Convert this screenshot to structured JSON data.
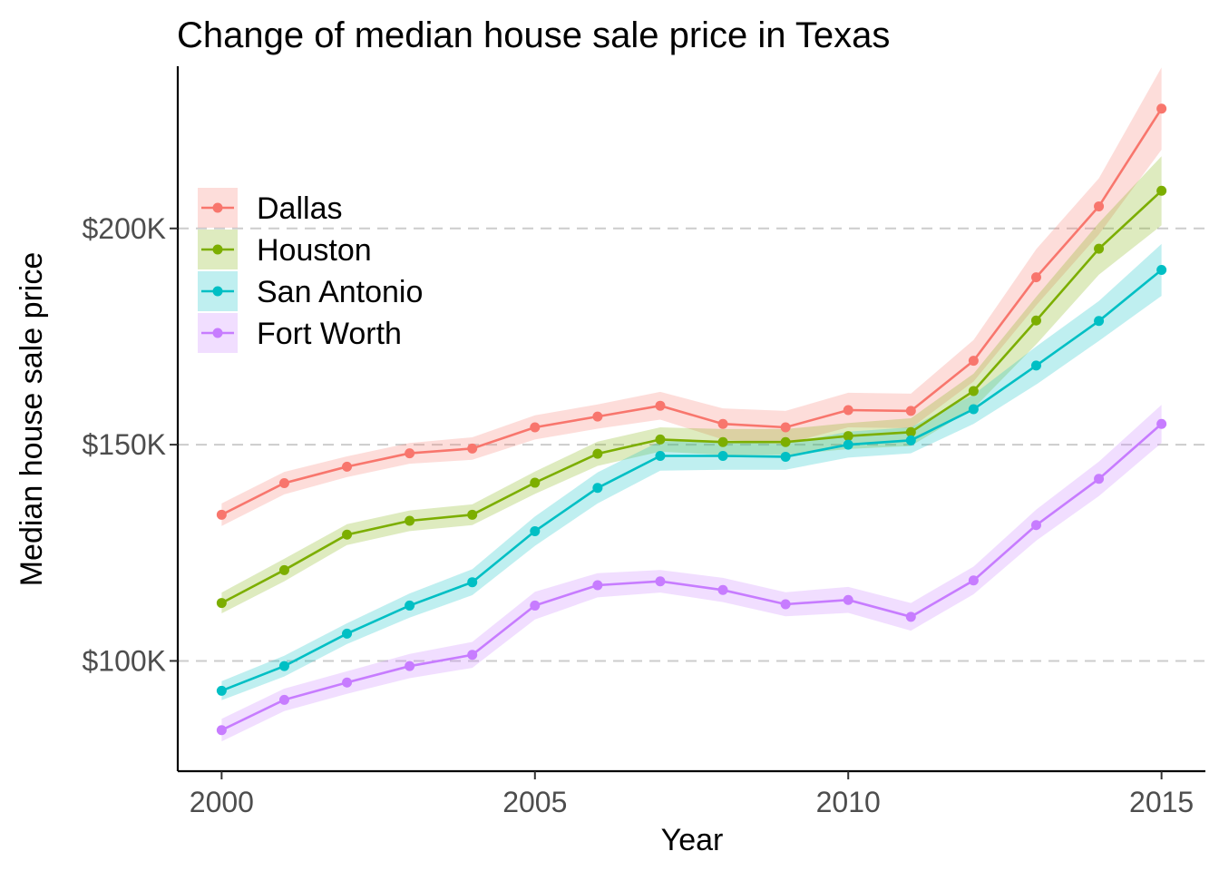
{
  "chart_data": {
    "type": "line",
    "title": "Change of median house sale price in Texas",
    "xlabel": "Year",
    "ylabel": "Median house sale price",
    "x": [
      2000,
      2001,
      2002,
      2003,
      2004,
      2005,
      2006,
      2007,
      2008,
      2009,
      2010,
      2011,
      2012,
      2013,
      2014,
      2015
    ],
    "xlim": [
      1999.3,
      2015.7
    ],
    "ylim": [
      74500,
      237500
    ],
    "x_ticks": [
      2000,
      2005,
      2010,
      2015
    ],
    "x_tick_labels": [
      "2000",
      "2005",
      "2010",
      "2015"
    ],
    "y_ticks": [
      100000,
      150000,
      200000
    ],
    "y_tick_labels": [
      "$100K",
      "$150K",
      "$200K"
    ],
    "grid": "horizontal-major",
    "legend_position": "top-left",
    "confidence_band": true,
    "series": [
      {
        "name": "Dallas",
        "color": "#F8766D",
        "values": [
          133800,
          141100,
          144900,
          148000,
          149100,
          154000,
          156500,
          159000,
          154800,
          154000,
          158000,
          157800,
          169400,
          188700,
          205100,
          227700
        ],
        "band": [
          2600,
          2600,
          2400,
          2400,
          2600,
          2800,
          2800,
          3200,
          3600,
          3800,
          4000,
          4000,
          4800,
          6500,
          6500,
          9500
        ]
      },
      {
        "name": "Houston",
        "color": "#7CAE00",
        "values": [
          113400,
          121000,
          129200,
          132400,
          133800,
          141200,
          147900,
          151200,
          150600,
          150600,
          152000,
          152900,
          162400,
          178700,
          195300,
          208700
        ],
        "band": [
          2400,
          2600,
          2400,
          2400,
          2400,
          2600,
          2800,
          2800,
          3000,
          3000,
          3000,
          3200,
          4000,
          5500,
          6000,
          8000
        ]
      },
      {
        "name": "San Antonio",
        "color": "#00BFC4",
        "values": [
          93100,
          98800,
          106300,
          112800,
          118200,
          130000,
          140000,
          147400,
          147400,
          147200,
          150000,
          151000,
          158200,
          168300,
          178600,
          190400
        ],
        "band": [
          2200,
          2400,
          2400,
          2800,
          3000,
          3400,
          3600,
          3400,
          3200,
          3000,
          3000,
          3000,
          3400,
          4400,
          4600,
          6000
        ]
      },
      {
        "name": "Fort Worth",
        "color": "#C77CFF",
        "values": [
          84000,
          91000,
          95000,
          98800,
          101400,
          112800,
          117500,
          118400,
          116400,
          113100,
          114100,
          110200,
          118600,
          131400,
          142100,
          154800
        ],
        "band": [
          2600,
          2600,
          2600,
          2800,
          3000,
          3200,
          2800,
          2600,
          2800,
          2800,
          3000,
          3200,
          3200,
          3600,
          4000,
          4400
        ]
      }
    ]
  }
}
